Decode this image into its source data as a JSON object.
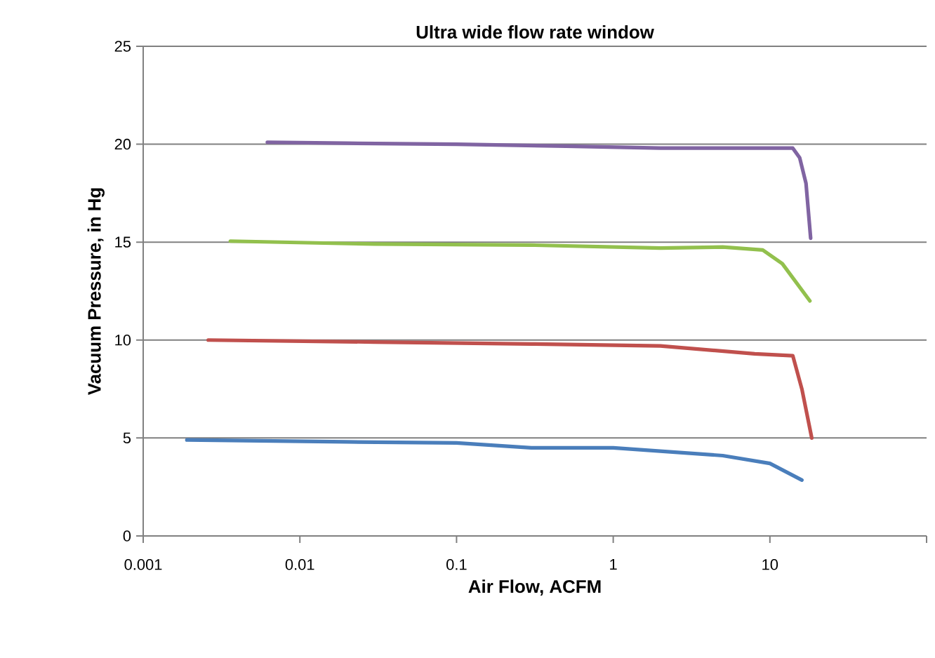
{
  "chart_data": {
    "type": "line",
    "title": "Ultra wide flow rate window",
    "xlabel": "Air Flow, ACFM",
    "ylabel": "Vacuum Pressure, in Hg",
    "log": "x",
    "grid": "y",
    "marker": "none",
    "line_style": "solid",
    "xlim": [
      0.001,
      100
    ],
    "xticks": [
      0.001,
      0.01,
      0.1,
      1,
      10,
      {
        "value": 100,
        "label": null
      }
    ],
    "ylim": [
      0,
      25
    ],
    "yticks": [
      0,
      5,
      10,
      15,
      20,
      25
    ],
    "series": [
      {
        "color": "#4a7ebb",
        "x": [
          0.0019,
          0.02,
          0.1,
          0.3,
          1,
          5,
          10,
          16
        ],
        "values": [
          4.9,
          4.8,
          4.75,
          4.5,
          4.5,
          4.1,
          3.7,
          2.85
        ]
      },
      {
        "color": "#c0504d",
        "x": [
          0.0026,
          0.03,
          0.3,
          2,
          8,
          14,
          16,
          18.5
        ],
        "values": [
          10.0,
          9.9,
          9.8,
          9.7,
          9.3,
          9.2,
          7.5,
          5.0
        ]
      },
      {
        "color": "#92c04d",
        "x": [
          0.0036,
          0.03,
          0.3,
          2,
          5,
          9,
          12,
          18
        ],
        "values": [
          15.05,
          14.9,
          14.85,
          14.7,
          14.75,
          14.6,
          13.9,
          12.0
        ]
      },
      {
        "color": "#8064a2",
        "x": [
          0.0062,
          0.02,
          0.1,
          0.5,
          2,
          8,
          14,
          15.5,
          17,
          18.2
        ],
        "values": [
          20.1,
          20.05,
          20.0,
          19.9,
          19.8,
          19.8,
          19.8,
          19.3,
          18.0,
          15.2
        ]
      }
    ]
  }
}
